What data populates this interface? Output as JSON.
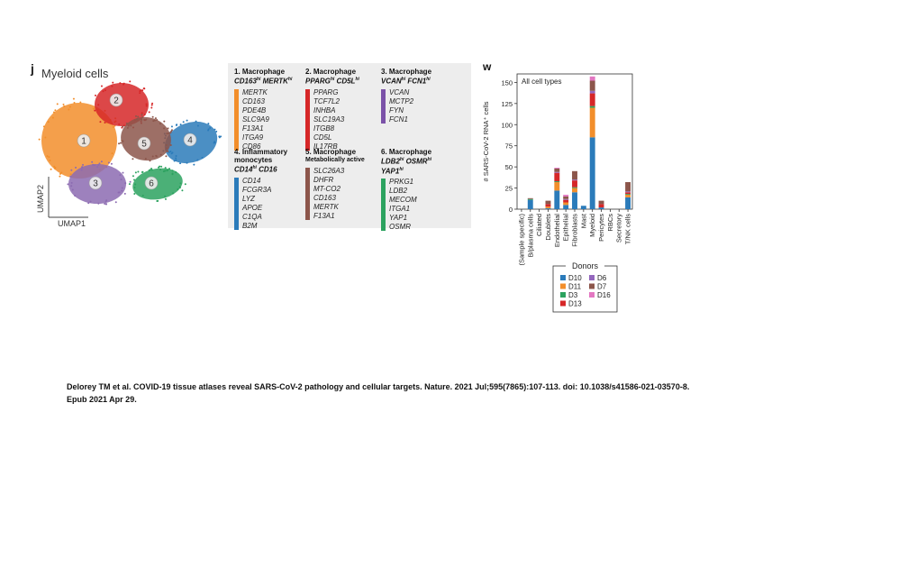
{
  "panel_j": {
    "letter": "j",
    "title": "Myeloid cells",
    "axis_x": "UMAP1",
    "axis_y": "UMAP2",
    "clusters": [
      {
        "id": "1",
        "color": "#f28e2b"
      },
      {
        "id": "2",
        "color": "#d62728"
      },
      {
        "id": "3",
        "color": "#8c6bb1"
      },
      {
        "id": "4",
        "color": "#2b7bba"
      },
      {
        "id": "5",
        "color": "#8c564b"
      },
      {
        "id": "6",
        "color": "#2ca25f"
      }
    ]
  },
  "markers": [
    {
      "num": "1.",
      "title": "Macrophage",
      "sub": "CD163",
      "sub_sup": "hi",
      "sub2": "MERTK",
      "sub2_sup": "hi",
      "color": "#f28e2b",
      "genes": [
        "MERTK",
        "CD163",
        "PDE4B",
        "SLC9A9",
        "F13A1",
        "ITGA9",
        "CD86"
      ]
    },
    {
      "num": "2.",
      "title": "Macrophage",
      "sub": "PPARG",
      "sub_sup": "hi",
      "sub2": "CD5L",
      "sub2_sup": "hi",
      "color": "#d62728",
      "genes": [
        "PPARG",
        "TCF7L2",
        "INHBA",
        "SLC19A3",
        "ITGB8",
        "CD5L",
        "IL17RB"
      ]
    },
    {
      "num": "3.",
      "title": "Macrophage",
      "sub": "VCAN",
      "sub_sup": "hi",
      "sub2": "FCN1",
      "sub2_sup": "hi",
      "color": "#7b52a8",
      "genes": [
        "VCAN",
        "MCTP2",
        "FYN",
        "FCN1"
      ]
    },
    {
      "num": "4.",
      "title": "Inflammatory monocytes",
      "sub": "CD14",
      "sub_sup": "hi",
      "sub2": "CD16",
      "sub2_sup": "",
      "color": "#2b7bba",
      "genes": [
        "CD14",
        "FCGR3A",
        "LYZ",
        "APOE",
        "C1QA",
        "B2M"
      ]
    },
    {
      "num": "5.",
      "title": "Macrophage",
      "sub": "Metabolically active",
      "sub_sup": "",
      "sub2": "",
      "sub2_sup": "",
      "color": "#8c564b",
      "genes": [
        "SLC26A3",
        "DHFR",
        "MT-CO2",
        "CD163",
        "MERTK",
        "F13A1"
      ]
    },
    {
      "num": "6.",
      "title": "Macrophage",
      "sub": "LDB2",
      "sub_sup": "hi",
      "sub2": "OSMR",
      "sub2_sup": "hi",
      "sub3": "YAP1",
      "sub3_sup": "hi",
      "color": "#2ca25f",
      "genes": [
        "PRKG1",
        "LDB2",
        "MECOM",
        "ITGA1",
        "YAP1",
        "OSMR"
      ]
    }
  ],
  "chart_data": {
    "type": "bar",
    "stacked": true,
    "letter": "w",
    "title": "All cell types",
    "ylabel": "# SARS-CoV-2 RNA⁺ cells",
    "xlabel": "",
    "ylim": [
      0,
      160
    ],
    "yticks": [
      0,
      25,
      50,
      75,
      100,
      125,
      150
    ],
    "categories": [
      "(Sample specific)",
      "B/plasma cells",
      "Ciliated",
      "Doublets",
      "Endothelial",
      "Epithelial",
      "Fibroblasts",
      "Mast",
      "Myeloid",
      "Pericytes",
      "RBCs",
      "Secretory",
      "T/NK cells"
    ],
    "series": [
      {
        "name": "D10",
        "color": "#2b7bba",
        "values": [
          0,
          11,
          0,
          1,
          22,
          5,
          20,
          4,
          85,
          2,
          0,
          0,
          14
        ]
      },
      {
        "name": "D11",
        "color": "#f28e2b",
        "values": [
          0,
          0,
          0,
          2,
          10,
          3,
          5,
          0,
          35,
          0,
          0,
          0,
          3
        ]
      },
      {
        "name": "D3",
        "color": "#2ca25f",
        "values": [
          0,
          1,
          0,
          0,
          1,
          0,
          1,
          0,
          2,
          0,
          0,
          0,
          1
        ]
      },
      {
        "name": "D13",
        "color": "#d62728",
        "values": [
          0,
          0,
          0,
          3,
          10,
          3,
          8,
          0,
          15,
          4,
          0,
          0,
          2
        ]
      },
      {
        "name": "D6",
        "color": "#9467bd",
        "values": [
          0,
          0,
          0,
          0,
          1,
          1,
          1,
          0,
          3,
          0,
          0,
          0,
          1
        ]
      },
      {
        "name": "D7",
        "color": "#8c564b",
        "values": [
          0,
          1,
          0,
          4,
          4,
          3,
          10,
          0,
          12,
          4,
          0,
          0,
          11
        ]
      },
      {
        "name": "D16",
        "color": "#e377c2",
        "values": [
          0,
          0,
          0,
          0,
          1,
          2,
          0,
          0,
          5,
          0,
          0,
          0,
          0
        ]
      }
    ],
    "legend_title": "Donors",
    "legend_placement": "bottom",
    "grid": false
  },
  "citation": "Delorey TM et al. COVID-19 tissue atlases reveal SARS-CoV-2 pathology and cellular targets. Nature. 2021 Jul;595(7865):107-113. doi: 10.1038/s41586-021-03570-8. Epub 2021 Apr 29."
}
